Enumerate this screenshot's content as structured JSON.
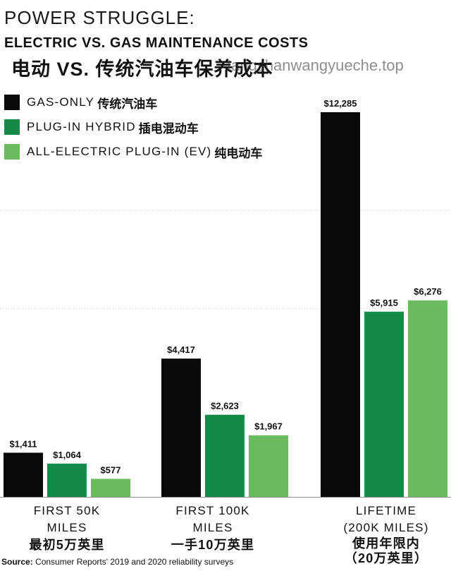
{
  "header": {
    "kicker": "POWER STRUGGLE:",
    "title_en": "ELECTRIC VS. GAS MAINTENANCE COSTS",
    "title_cn": "电动 VS. 传统汽油车保养成本",
    "watermark": "tangshanwangyueche.top"
  },
  "legend": [
    {
      "label": "GAS-ONLY",
      "label_cn": "传统汽油车",
      "color": "#0a0a0a"
    },
    {
      "label": "PLUG-IN HYBRID",
      "label_cn": "插电混动车",
      "color": "#138a47"
    },
    {
      "label": "ALL-ELECTRIC PLUG-IN (EV)",
      "label_cn": "纯电动车",
      "color": "#6abb5e"
    }
  ],
  "categories": [
    {
      "line1": "FIRST 50K",
      "line2": "MILES",
      "cn": "最初5万英里"
    },
    {
      "line1": "FIRST 100K",
      "line2": "MILES",
      "cn": "一手10万英里"
    },
    {
      "line1": "LIFETIME",
      "line2": "(200K MILES)",
      "cn": "使用年限内\n（20万英里）"
    }
  ],
  "source": {
    "prefix": "Source:",
    "text": " Consumer Reports' 2019 and 2020 reliability surveys"
  },
  "chart_data": {
    "type": "bar",
    "categories": [
      "FIRST 50K MILES",
      "FIRST 100K MILES",
      "LIFETIME (200K MILES)"
    ],
    "series": [
      {
        "name": "GAS-ONLY",
        "values": [
          1411,
          4417,
          12285
        ],
        "labels": [
          "$1,411",
          "$4,417",
          "$12,285"
        ]
      },
      {
        "name": "PLUG-IN HYBRID",
        "values": [
          1064,
          2623,
          5915
        ],
        "labels": [
          "$1,064",
          "$2,623",
          "$5,915"
        ]
      },
      {
        "name": "ALL-ELECTRIC PLUG-IN (EV)",
        "values": [
          577,
          1967,
          6276
        ],
        "labels": [
          "$577",
          "$1,967",
          "$6,276"
        ]
      }
    ],
    "ylim": [
      0,
      13500
    ],
    "grid": true,
    "legend_position": "top-left"
  }
}
